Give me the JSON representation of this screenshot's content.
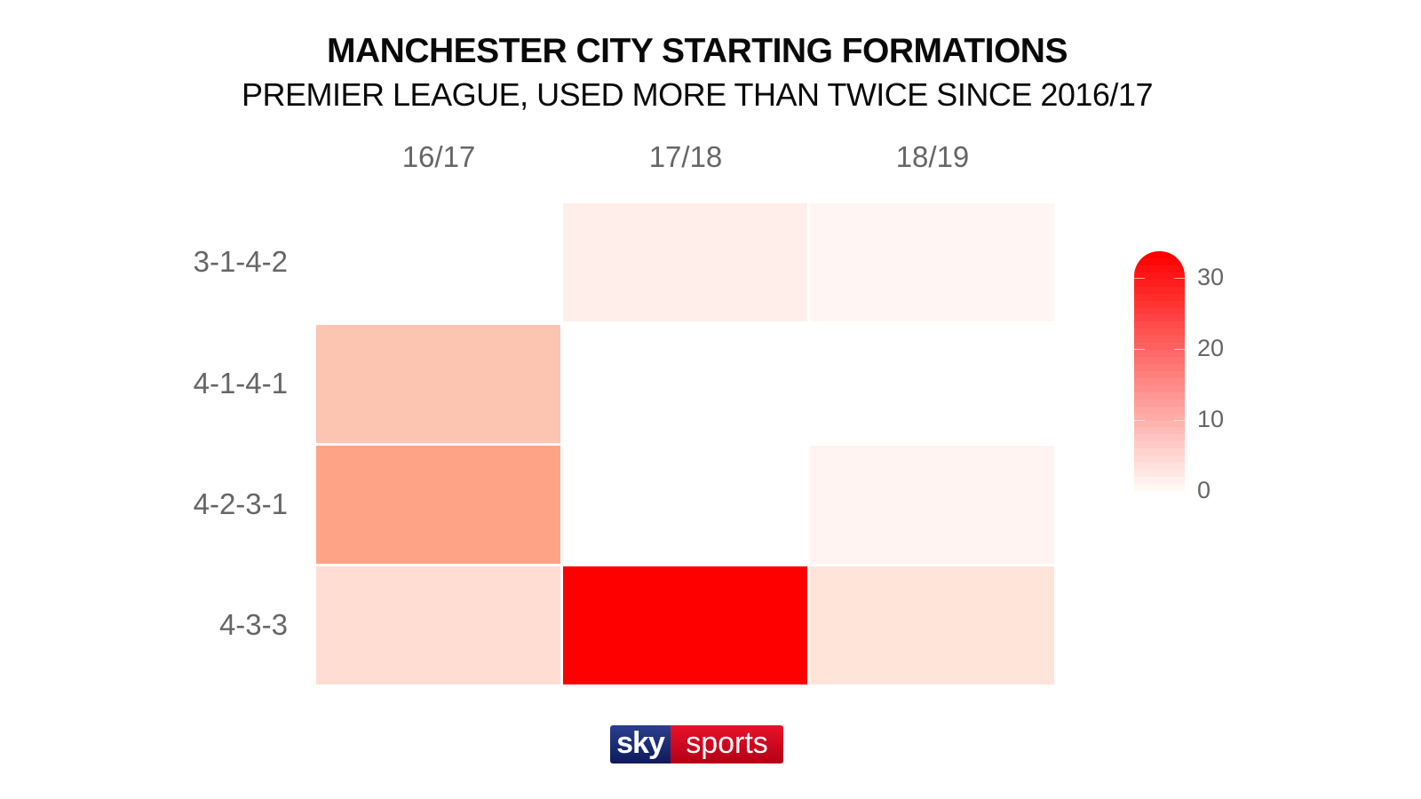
{
  "header": {
    "title": "MANCHESTER CITY STARTING FORMATIONS",
    "subtitle": "PREMIER LEAGUE, USED MORE THAN TWICE SINCE 2016/17"
  },
  "columns": [
    "16/17",
    "17/18",
    "18/19"
  ],
  "rows": [
    "3-1-4-2",
    "4-1-4-1",
    "4-2-3-1",
    "4-3-3"
  ],
  "colorbar": {
    "ticks": [
      "30",
      "20",
      "10",
      "0"
    ],
    "color_min": "#ffffff",
    "color_max": "#ff0000"
  },
  "cell_colors": [
    [
      "#ffffff",
      "#ffeee9",
      "#fff6f3"
    ],
    [
      "#fcc5b2",
      "#ffffff",
      "#ffffff"
    ],
    [
      "#fea386",
      "#ffffff",
      "#fff4f1"
    ],
    [
      "#ffddd3",
      "#ff0000",
      "#ffe4da"
    ]
  ],
  "logo": {
    "part1": "sky",
    "part2": "sports"
  },
  "chart_data": {
    "type": "heatmap",
    "title": "MANCHESTER CITY STARTING FORMATIONS",
    "subtitle": "PREMIER LEAGUE, USED MORE THAN TWICE SINCE 2016/17",
    "x": [
      "16/17",
      "17/18",
      "18/19"
    ],
    "y": [
      "3-1-4-2",
      "4-1-4-1",
      "4-2-3-1",
      "4-3-3"
    ],
    "values": [
      [
        null,
        4,
        3
      ],
      [
        11,
        null,
        null
      ],
      [
        16,
        null,
        3
      ],
      [
        7,
        34,
        6
      ]
    ],
    "colorbar": {
      "min": 0,
      "max": 34,
      "ticks": [
        0,
        10,
        20,
        30
      ],
      "colors": [
        "#ffffff",
        "#ff0000"
      ]
    },
    "xlabel": "",
    "ylabel": "",
    "grid": false,
    "legend_position": "right"
  }
}
